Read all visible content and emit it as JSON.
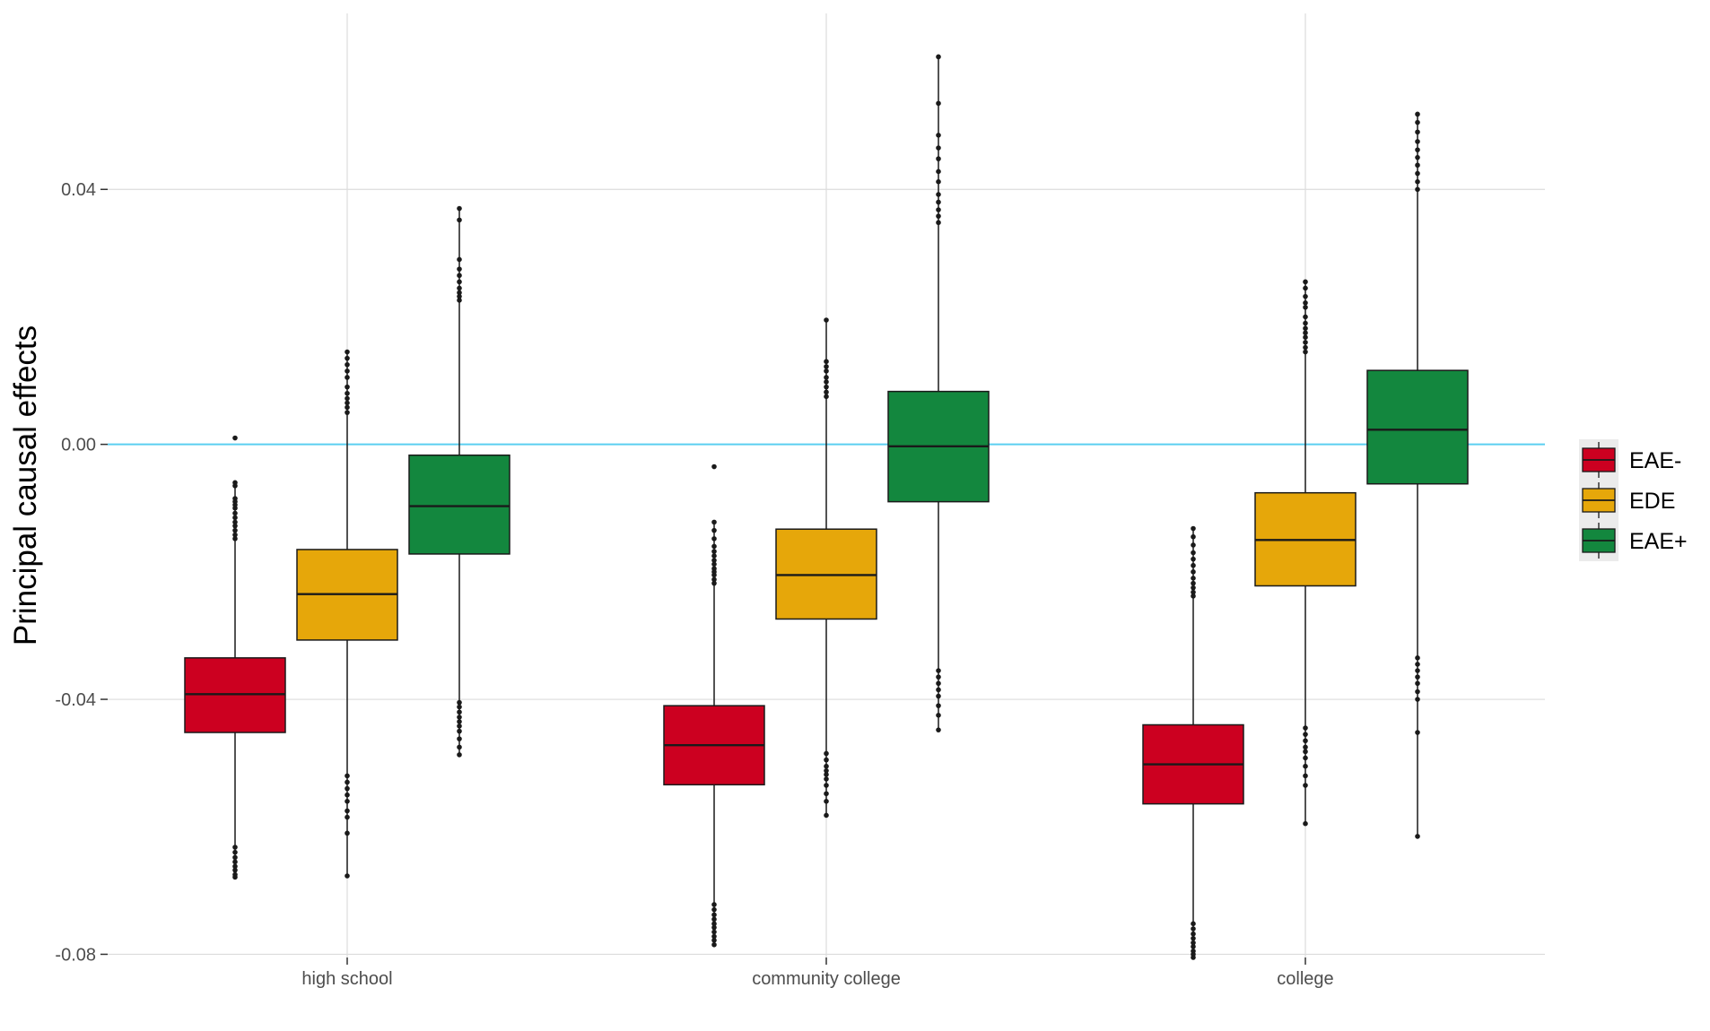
{
  "chart_data": {
    "type": "boxplot",
    "title": "",
    "xlabel": "",
    "ylabel": "Principal causal effects",
    "ylim": [
      -0.0805,
      0.0676
    ],
    "yticks": [
      0.04,
      0.0,
      -0.04,
      -0.08
    ],
    "ytick_labels": [
      "0.04",
      "0.00",
      "-0.04",
      "-0.08"
    ],
    "reference_line": {
      "y": 0.0,
      "color": "#5bcff0"
    },
    "categories": [
      "high school",
      "community college",
      "college"
    ],
    "series": [
      {
        "name": "EAE-",
        "color": "#cc0020",
        "boxes": [
          {
            "whisker_low": -0.0679,
            "q1": -0.0452,
            "median": -0.0392,
            "q3": -0.0335,
            "whisker_high": -0.006,
            "outliers": [
              0.001,
              -0.006,
              -0.0065,
              -0.0085,
              -0.009,
              -0.0095,
              -0.01,
              -0.0108,
              -0.0115,
              -0.0122,
              -0.0128,
              -0.0135,
              -0.0142,
              -0.0148,
              -0.0632,
              -0.064,
              -0.0648,
              -0.0655,
              -0.0662,
              -0.0668,
              -0.0675,
              -0.0679
            ]
          },
          {
            "whisker_low": -0.0785,
            "q1": -0.0534,
            "median": -0.0472,
            "q3": -0.041,
            "whisker_high": -0.0122,
            "outliers": [
              -0.0035,
              -0.0122,
              -0.0135,
              -0.0148,
              -0.016,
              -0.0168,
              -0.0175,
              -0.0182,
              -0.0188,
              -0.0195,
              -0.02,
              -0.0205,
              -0.0212,
              -0.0218,
              -0.0722,
              -0.073,
              -0.0738,
              -0.0745,
              -0.0752,
              -0.0758,
              -0.0765,
              -0.0772,
              -0.0778,
              -0.0785
            ]
          },
          {
            "whisker_low": -0.0805,
            "q1": -0.0564,
            "median": -0.0502,
            "q3": -0.044,
            "whisker_high": -0.0132,
            "outliers": [
              -0.0132,
              -0.0145,
              -0.0158,
              -0.017,
              -0.018,
              -0.019,
              -0.02,
              -0.021,
              -0.0218,
              -0.0225,
              -0.0232,
              -0.0238,
              -0.0752,
              -0.076,
              -0.0768,
              -0.0775,
              -0.0782,
              -0.0788,
              -0.0795,
              -0.08,
              -0.0805
            ]
          }
        ]
      },
      {
        "name": "EDE",
        "color": "#e6a70a",
        "boxes": [
          {
            "whisker_low": -0.0677,
            "q1": -0.0307,
            "median": -0.0235,
            "q3": -0.0165,
            "whisker_high": 0.0145,
            "outliers": [
              0.0145,
              0.0135,
              0.0125,
              0.0115,
              0.0105,
              0.009,
              0.008,
              0.0072,
              0.0065,
              0.0058,
              0.005,
              -0.052,
              -0.053,
              -0.054,
              -0.055,
              -0.056,
              -0.0575,
              -0.0585,
              -0.061,
              -0.0677
            ]
          },
          {
            "whisker_low": -0.0582,
            "q1": -0.0274,
            "median": -0.0205,
            "q3": -0.0133,
            "whisker_high": 0.0195,
            "outliers": [
              0.0195,
              0.013,
              0.0122,
              0.0115,
              0.0105,
              0.0098,
              0.009,
              0.0082,
              0.0075,
              -0.0485,
              -0.0495,
              -0.0505,
              -0.0512,
              -0.0518,
              -0.0525,
              -0.0535,
              -0.0548,
              -0.056,
              -0.0582
            ]
          },
          {
            "whisker_low": -0.0595,
            "q1": -0.0222,
            "median": -0.015,
            "q3": -0.0076,
            "whisker_high": 0.0255,
            "outliers": [
              0.0255,
              0.0245,
              0.0232,
              0.0222,
              0.0215,
              0.02,
              0.019,
              0.0182,
              0.0175,
              0.0168,
              0.016,
              0.0152,
              0.0145,
              -0.0445,
              -0.0455,
              -0.0465,
              -0.0475,
              -0.0482,
              -0.0492,
              -0.0505,
              -0.052,
              -0.0535,
              -0.0595
            ]
          }
        ]
      },
      {
        "name": "EAE+",
        "color": "#13873e",
        "boxes": [
          {
            "whisker_low": -0.0487,
            "q1": -0.0172,
            "median": -0.0097,
            "q3": -0.0017,
            "whisker_high": 0.037,
            "outliers": [
              0.037,
              0.0352,
              0.029,
              0.0275,
              0.0265,
              0.0255,
              0.0245,
              0.0238,
              0.0232,
              0.0226,
              -0.0405,
              -0.0412,
              -0.042,
              -0.0428,
              -0.0435,
              -0.0442,
              -0.045,
              -0.0462,
              -0.0475,
              -0.0487
            ]
          },
          {
            "whisker_low": -0.0448,
            "q1": -0.009,
            "median": -0.0003,
            "q3": 0.0083,
            "whisker_high": 0.0608,
            "outliers": [
              0.0608,
              0.0535,
              0.0485,
              0.0465,
              0.0448,
              0.0428,
              0.0412,
              0.0392,
              0.038,
              0.0368,
              0.0358,
              0.0348,
              -0.0355,
              -0.0365,
              -0.0375,
              -0.0385,
              -0.0395,
              -0.041,
              -0.0425,
              -0.0448
            ]
          },
          {
            "whisker_low": -0.0615,
            "q1": -0.0062,
            "median": 0.0023,
            "q3": 0.0116,
            "whisker_high": 0.0518,
            "outliers": [
              0.0518,
              0.0505,
              0.049,
              0.0475,
              0.0462,
              0.045,
              0.0438,
              0.0425,
              0.0412,
              0.04,
              -0.0335,
              -0.0345,
              -0.0355,
              -0.0365,
              -0.0375,
              -0.0388,
              -0.04,
              -0.0452,
              -0.0615
            ]
          }
        ]
      }
    ],
    "legend_position": "right"
  }
}
